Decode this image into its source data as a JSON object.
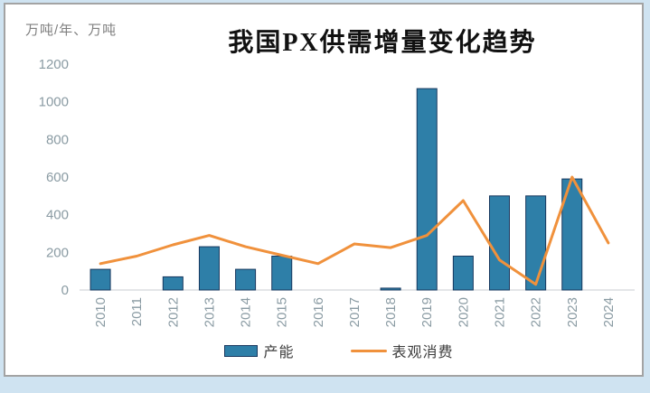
{
  "page": {
    "outer_background": "#cfe3f1",
    "frame_border_color": "#a3a3a3",
    "frame_background": "#ffffff"
  },
  "chart_data": {
    "type": "bar",
    "title": "我国PX供需增量变化趋势",
    "unit_label": "万吨/年、万吨",
    "categories": [
      "2010",
      "2011",
      "2012",
      "2013",
      "2014",
      "2015",
      "2016",
      "2017",
      "2018",
      "2019",
      "2020",
      "2021",
      "2022",
      "2023",
      "2024"
    ],
    "series": [
      {
        "name": "产能",
        "type": "bar",
        "color": "#2e7fa8",
        "border_color": "#17375e",
        "values": [
          110,
          0,
          70,
          230,
          110,
          180,
          0,
          0,
          10,
          1070,
          180,
          500,
          500,
          590,
          0
        ]
      },
      {
        "name": "表观消费",
        "type": "line",
        "color": "#f0913c",
        "values": [
          140,
          180,
          240,
          290,
          230,
          185,
          140,
          245,
          225,
          290,
          475,
          160,
          30,
          600,
          250
        ]
      }
    ],
    "ylim": [
      0,
      1200
    ],
    "yticks": [
      "0",
      "200",
      "400",
      "600",
      "800",
      "1000",
      "1200"
    ],
    "grid": false,
    "legend_position": "bottom",
    "axis_color": "#c9ced2",
    "tick_label_color": "#8a9ba3"
  }
}
